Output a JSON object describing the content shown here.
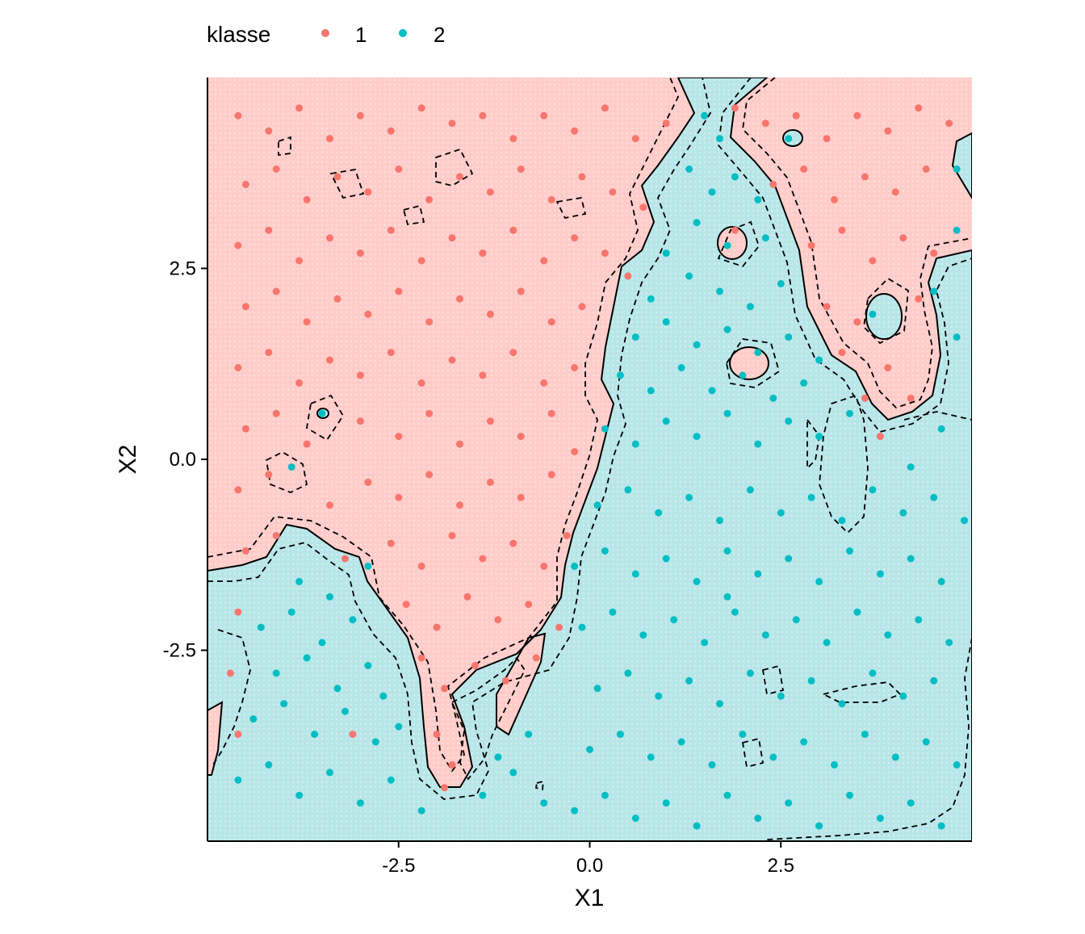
{
  "chart_data": {
    "type": "scatter",
    "title": "",
    "xlabel": "X1",
    "ylabel": "X2",
    "xlim": [
      -5,
      5
    ],
    "ylim": [
      -5,
      5
    ],
    "x_ticks": [
      -2.5,
      0.0,
      2.5
    ],
    "y_ticks": [
      -2.5,
      0.0,
      2.5
    ],
    "x_tick_labels": [
      "-2.5",
      "0.0",
      "2.5"
    ],
    "y_tick_labels": [
      "-2.5",
      "0.0",
      "2.5"
    ],
    "grid": false,
    "legend": {
      "title": "klasse",
      "position": "top",
      "entries": [
        {
          "label": "1",
          "color": "#F8766D"
        },
        {
          "label": "2",
          "color": "#00BFC4"
        }
      ]
    },
    "background_regions": {
      "class_1_fill": "#FFCCC9",
      "class_2_fill": "#B8E6E8"
    },
    "contours": [
      {
        "style": "solid",
        "meaning": "decision boundary"
      },
      {
        "style": "dashed",
        "meaning": "margin boundary"
      }
    ],
    "series": [
      {
        "name": "1",
        "color": "#F8766D",
        "points": [
          [
            -4.6,
            4.5
          ],
          [
            -4.2,
            4.3
          ],
          [
            -3.8,
            4.6
          ],
          [
            -3.4,
            4.2
          ],
          [
            -3.0,
            4.5
          ],
          [
            -2.6,
            4.3
          ],
          [
            -2.2,
            4.6
          ],
          [
            -1.8,
            4.4
          ],
          [
            -1.4,
            4.5
          ],
          [
            -1.0,
            4.2
          ],
          [
            -0.6,
            4.5
          ],
          [
            -0.2,
            4.3
          ],
          [
            0.2,
            4.6
          ],
          [
            0.6,
            4.2
          ],
          [
            1.0,
            4.4
          ],
          [
            -4.5,
            3.6
          ],
          [
            -4.1,
            3.8
          ],
          [
            -3.7,
            3.4
          ],
          [
            -3.3,
            3.7
          ],
          [
            -2.9,
            3.5
          ],
          [
            -2.5,
            3.8
          ],
          [
            -2.1,
            3.4
          ],
          [
            -1.7,
            3.7
          ],
          [
            -1.3,
            3.5
          ],
          [
            -0.9,
            3.8
          ],
          [
            -0.5,
            3.4
          ],
          [
            -0.1,
            3.7
          ],
          [
            0.3,
            3.5
          ],
          [
            0.7,
            3.3
          ],
          [
            -4.6,
            2.8
          ],
          [
            -4.2,
            3.0
          ],
          [
            -3.8,
            2.6
          ],
          [
            -3.4,
            2.9
          ],
          [
            -3.0,
            2.7
          ],
          [
            -2.6,
            3.0
          ],
          [
            -2.2,
            2.6
          ],
          [
            -1.8,
            2.9
          ],
          [
            -1.4,
            2.7
          ],
          [
            -1.0,
            3.0
          ],
          [
            -0.6,
            2.6
          ],
          [
            -0.2,
            2.9
          ],
          [
            0.2,
            2.7
          ],
          [
            0.5,
            2.4
          ],
          [
            -4.5,
            2.0
          ],
          [
            -4.1,
            2.2
          ],
          [
            -3.7,
            1.8
          ],
          [
            -3.3,
            2.1
          ],
          [
            -2.9,
            1.9
          ],
          [
            -2.5,
            2.2
          ],
          [
            -2.1,
            1.8
          ],
          [
            -1.7,
            2.1
          ],
          [
            -1.3,
            1.9
          ],
          [
            -0.9,
            2.2
          ],
          [
            -0.5,
            1.8
          ],
          [
            -0.1,
            2.0
          ],
          [
            -4.6,
            1.2
          ],
          [
            -4.2,
            1.4
          ],
          [
            -3.8,
            1.0
          ],
          [
            -3.4,
            1.3
          ],
          [
            -3.0,
            1.1
          ],
          [
            -2.6,
            1.4
          ],
          [
            -2.2,
            1.0
          ],
          [
            -1.8,
            1.3
          ],
          [
            -1.4,
            1.1
          ],
          [
            -1.0,
            1.4
          ],
          [
            -0.6,
            1.0
          ],
          [
            -0.2,
            1.2
          ],
          [
            -4.5,
            0.4
          ],
          [
            -4.1,
            0.6
          ],
          [
            -3.7,
            0.2
          ],
          [
            -3.0,
            0.5
          ],
          [
            -2.5,
            0.3
          ],
          [
            -2.1,
            0.6
          ],
          [
            -1.7,
            0.2
          ],
          [
            -1.3,
            0.5
          ],
          [
            -0.9,
            0.3
          ],
          [
            -0.5,
            0.6
          ],
          [
            -0.2,
            0.1
          ],
          [
            -4.6,
            -0.4
          ],
          [
            -4.2,
            -0.2
          ],
          [
            -3.4,
            -0.6
          ],
          [
            -2.9,
            -0.3
          ],
          [
            -2.5,
            -0.5
          ],
          [
            -2.1,
            -0.2
          ],
          [
            -1.7,
            -0.6
          ],
          [
            -1.3,
            -0.3
          ],
          [
            -0.9,
            -0.5
          ],
          [
            -0.5,
            -0.2
          ],
          [
            -4.5,
            -1.2
          ],
          [
            -4.1,
            -1.0
          ],
          [
            -3.2,
            -1.3
          ],
          [
            -2.6,
            -1.1
          ],
          [
            -2.2,
            -1.4
          ],
          [
            -1.8,
            -1.0
          ],
          [
            -1.4,
            -1.3
          ],
          [
            -1.0,
            -1.1
          ],
          [
            -0.6,
            -1.4
          ],
          [
            -0.3,
            -1.0
          ],
          [
            -4.6,
            -2.0
          ],
          [
            -2.4,
            -1.9
          ],
          [
            -2.0,
            -2.2
          ],
          [
            -1.6,
            -1.8
          ],
          [
            -1.2,
            -2.1
          ],
          [
            -0.8,
            -1.9
          ],
          [
            -0.4,
            -2.2
          ],
          [
            -4.7,
            -2.8
          ],
          [
            -2.2,
            -2.6
          ],
          [
            -1.9,
            -3.0
          ],
          [
            -1.5,
            -2.7
          ],
          [
            -1.1,
            -2.9
          ],
          [
            -0.7,
            -2.6
          ],
          [
            -4.6,
            -3.6
          ],
          [
            -2.0,
            -3.6
          ],
          [
            -1.8,
            -4.0
          ],
          [
            -1.9,
            -4.3
          ],
          [
            -3.1,
            -3.6
          ],
          [
            1.9,
            4.6
          ],
          [
            2.3,
            4.4
          ],
          [
            2.7,
            4.5
          ],
          [
            3.1,
            4.2
          ],
          [
            3.5,
            4.5
          ],
          [
            3.9,
            4.3
          ],
          [
            4.3,
            4.6
          ],
          [
            4.7,
            4.4
          ],
          [
            2.4,
            3.6
          ],
          [
            2.8,
            3.8
          ],
          [
            3.2,
            3.4
          ],
          [
            3.6,
            3.7
          ],
          [
            4.0,
            3.5
          ],
          [
            4.4,
            3.8
          ],
          [
            2.9,
            2.8
          ],
          [
            3.3,
            3.0
          ],
          [
            3.7,
            2.6
          ],
          [
            4.1,
            2.9
          ],
          [
            4.5,
            2.7
          ],
          [
            3.1,
            2.0
          ],
          [
            3.5,
            1.8
          ],
          [
            4.3,
            2.1
          ],
          [
            3.3,
            1.4
          ],
          [
            3.9,
            1.2
          ],
          [
            4.2,
            0.8
          ],
          [
            3.6,
            0.8
          ],
          [
            3.8,
            0.3
          ],
          [
            1.9,
            3.0
          ]
        ]
      },
      {
        "name": "2",
        "color": "#00BFC4",
        "points": [
          [
            1.5,
            4.5
          ],
          [
            1.7,
            4.2
          ],
          [
            1.3,
            3.8
          ],
          [
            1.6,
            3.5
          ],
          [
            1.9,
            3.7
          ],
          [
            2.2,
            3.4
          ],
          [
            1.4,
            3.1
          ],
          [
            1.8,
            2.8
          ],
          [
            2.3,
            2.9
          ],
          [
            1.0,
            2.7
          ],
          [
            1.3,
            2.4
          ],
          [
            1.7,
            2.2
          ],
          [
            2.1,
            2.0
          ],
          [
            2.5,
            2.3
          ],
          [
            0.8,
            2.1
          ],
          [
            0.6,
            1.6
          ],
          [
            1.0,
            1.8
          ],
          [
            1.4,
            1.5
          ],
          [
            1.8,
            1.7
          ],
          [
            2.2,
            1.4
          ],
          [
            2.6,
            1.6
          ],
          [
            3.0,
            1.3
          ],
          [
            0.4,
            1.1
          ],
          [
            0.8,
            0.9
          ],
          [
            1.2,
            1.2
          ],
          [
            1.6,
            0.9
          ],
          [
            2.0,
            1.1
          ],
          [
            2.4,
            0.8
          ],
          [
            2.8,
            1.0
          ],
          [
            0.2,
            0.4
          ],
          [
            0.6,
            0.2
          ],
          [
            1.0,
            0.5
          ],
          [
            1.4,
            0.3
          ],
          [
            1.8,
            0.6
          ],
          [
            2.2,
            0.2
          ],
          [
            2.6,
            0.5
          ],
          [
            3.0,
            0.3
          ],
          [
            3.4,
            0.6
          ],
          [
            4.6,
            0.4
          ],
          [
            4.2,
            -0.1
          ],
          [
            4.8,
            1.6
          ],
          [
            4.5,
            2.2
          ],
          [
            4.8,
            3.8
          ],
          [
            0.1,
            -0.6
          ],
          [
            0.5,
            -0.4
          ],
          [
            0.9,
            -0.7
          ],
          [
            1.3,
            -0.5
          ],
          [
            1.7,
            -0.8
          ],
          [
            2.1,
            -0.4
          ],
          [
            2.5,
            -0.7
          ],
          [
            2.9,
            -0.5
          ],
          [
            3.3,
            -0.8
          ],
          [
            3.7,
            -0.4
          ],
          [
            4.1,
            -0.7
          ],
          [
            4.5,
            -0.5
          ],
          [
            4.9,
            -0.8
          ],
          [
            -0.2,
            -1.4
          ],
          [
            0.2,
            -1.2
          ],
          [
            0.6,
            -1.5
          ],
          [
            1.0,
            -1.3
          ],
          [
            1.4,
            -1.6
          ],
          [
            1.8,
            -1.2
          ],
          [
            2.2,
            -1.5
          ],
          [
            2.6,
            -1.3
          ],
          [
            3.0,
            -1.6
          ],
          [
            3.4,
            -1.2
          ],
          [
            3.8,
            -1.5
          ],
          [
            4.2,
            -1.3
          ],
          [
            4.6,
            -1.6
          ],
          [
            -0.1,
            -2.2
          ],
          [
            0.3,
            -2.0
          ],
          [
            0.7,
            -2.3
          ],
          [
            1.1,
            -2.1
          ],
          [
            1.5,
            -2.4
          ],
          [
            1.9,
            -2.0
          ],
          [
            2.3,
            -2.3
          ],
          [
            2.7,
            -2.1
          ],
          [
            3.1,
            -2.4
          ],
          [
            3.5,
            -2.0
          ],
          [
            3.9,
            -2.3
          ],
          [
            4.3,
            -2.1
          ],
          [
            4.7,
            -2.4
          ],
          [
            0.1,
            -3.0
          ],
          [
            0.5,
            -2.8
          ],
          [
            0.9,
            -3.1
          ],
          [
            1.3,
            -2.9
          ],
          [
            1.7,
            -3.2
          ],
          [
            2.1,
            -2.8
          ],
          [
            2.5,
            -3.1
          ],
          [
            2.9,
            -2.9
          ],
          [
            3.3,
            -3.2
          ],
          [
            3.7,
            -2.8
          ],
          [
            4.1,
            -3.1
          ],
          [
            4.5,
            -2.9
          ],
          [
            0.0,
            -3.8
          ],
          [
            0.4,
            -3.6
          ],
          [
            0.8,
            -3.9
          ],
          [
            1.2,
            -3.7
          ],
          [
            1.6,
            -4.0
          ],
          [
            2.0,
            -3.6
          ],
          [
            2.4,
            -3.9
          ],
          [
            2.8,
            -3.7
          ],
          [
            3.2,
            -4.0
          ],
          [
            3.6,
            -3.6
          ],
          [
            4.0,
            -3.9
          ],
          [
            4.4,
            -3.7
          ],
          [
            4.8,
            -4.0
          ],
          [
            -0.2,
            -4.6
          ],
          [
            0.2,
            -4.4
          ],
          [
            0.6,
            -4.7
          ],
          [
            1.0,
            -4.5
          ],
          [
            1.4,
            -4.8
          ],
          [
            1.8,
            -4.4
          ],
          [
            2.2,
            -4.7
          ],
          [
            2.6,
            -4.5
          ],
          [
            3.0,
            -4.8
          ],
          [
            3.4,
            -4.4
          ],
          [
            3.8,
            -4.7
          ],
          [
            4.2,
            -4.5
          ],
          [
            4.6,
            -4.8
          ],
          [
            -4.3,
            -2.2
          ],
          [
            -3.9,
            -2.0
          ],
          [
            -3.5,
            -2.4
          ],
          [
            -3.1,
            -2.1
          ],
          [
            -4.1,
            -2.8
          ],
          [
            -3.7,
            -2.6
          ],
          [
            -3.3,
            -3.0
          ],
          [
            -2.9,
            -2.7
          ],
          [
            -4.4,
            -3.4
          ],
          [
            -4.0,
            -3.2
          ],
          [
            -3.6,
            -3.6
          ],
          [
            -3.2,
            -3.3
          ],
          [
            -2.8,
            -3.7
          ],
          [
            -4.6,
            -4.2
          ],
          [
            -4.2,
            -4.0
          ],
          [
            -3.8,
            -4.4
          ],
          [
            -3.4,
            -4.1
          ],
          [
            -3.0,
            -4.5
          ],
          [
            -2.6,
            -4.2
          ],
          [
            -2.2,
            -4.6
          ],
          [
            -1.4,
            -4.4
          ],
          [
            -1.0,
            -4.1
          ],
          [
            -0.6,
            -4.5
          ],
          [
            -1.2,
            -3.9
          ],
          [
            -0.8,
            -3.6
          ],
          [
            -3.8,
            -1.6
          ],
          [
            -3.4,
            -1.8
          ],
          [
            -2.9,
            -1.4
          ],
          [
            -3.5,
            0.6
          ],
          [
            -3.9,
            -0.1
          ],
          [
            -2.7,
            -3.1
          ],
          [
            -2.5,
            -3.5
          ],
          [
            1.8,
            -1.8
          ],
          [
            3.7,
            1.9
          ],
          [
            2.6,
            4.2
          ],
          [
            4.8,
            3.0
          ]
        ]
      }
    ]
  }
}
